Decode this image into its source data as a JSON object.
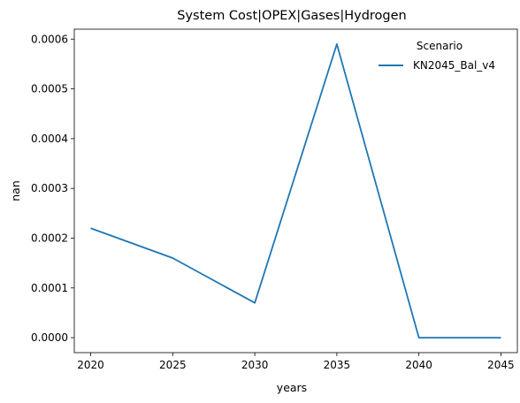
{
  "chart_data": {
    "type": "line",
    "title": "System Cost|OPEX|Gases|Hydrogen",
    "xlabel": "years",
    "ylabel": "nan",
    "x": [
      2020,
      2025,
      2030,
      2035,
      2040,
      2045
    ],
    "xticks": [
      "2020",
      "2025",
      "2030",
      "2035",
      "2040",
      "2045"
    ],
    "yticks": [
      "0.0000",
      "0.0001",
      "0.0002",
      "0.0003",
      "0.0004",
      "0.0005",
      "0.0006"
    ],
    "xlim": [
      2019,
      2046
    ],
    "ylim": [
      -3e-05,
      0.00062
    ],
    "grid": false,
    "legend": {
      "title": "Scenario",
      "placement": "top-right"
    },
    "series": [
      {
        "name": "KN2045_Bal_v4",
        "color": "#1f77b4",
        "values": [
          0.00022,
          0.00016,
          7e-05,
          0.00059,
          0.0,
          0.0
        ]
      }
    ]
  }
}
